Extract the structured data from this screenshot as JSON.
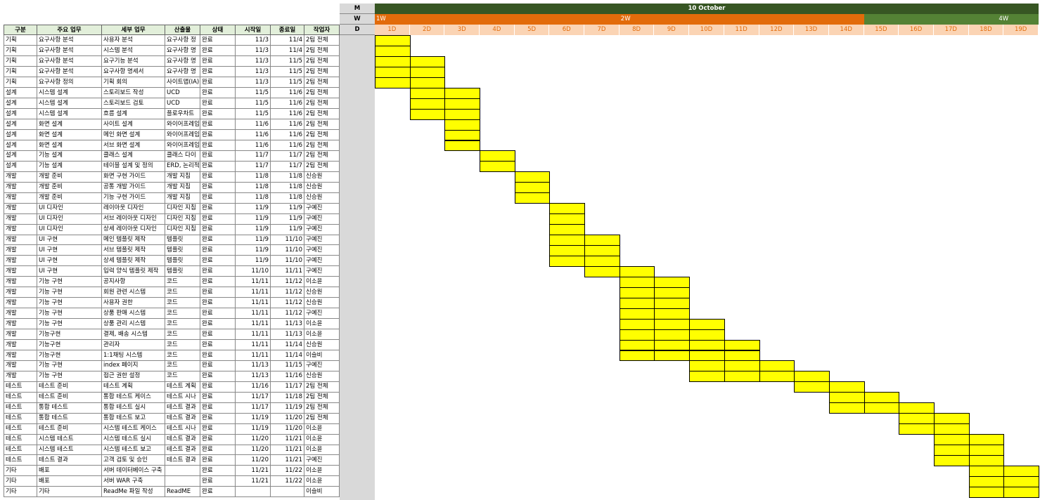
{
  "table": {
    "headers": [
      "구분",
      "주요 업무",
      "세부 업무",
      "산출물",
      "상태",
      "시작일",
      "종료일",
      "작업자"
    ],
    "rows": [
      [
        "기획",
        "요구사항 분석",
        "사용자 분석",
        "요구사항 정",
        "완료",
        "11/3",
        "11/4",
        "2팀 전체"
      ],
      [
        "기획",
        "요구사항 분석",
        "시스템 분석",
        "요구사항 명",
        "완료",
        "11/3",
        "11/4",
        "2팀 전체"
      ],
      [
        "기획",
        "요구사항 분석",
        "요구기능 분석",
        "요구사항 명",
        "완료",
        "11/3",
        "11/5",
        "2팀 전체"
      ],
      [
        "기획",
        "요구사항 분석",
        "요구사항 명세서",
        "요구사항 명",
        "완료",
        "11/3",
        "11/5",
        "2팀 전체"
      ],
      [
        "기획",
        "요구사항 정의",
        "기획 회의",
        "사이트맵(IA)",
        "완료",
        "11/3",
        "11/5",
        "2팀 전체"
      ],
      [
        "설계",
        "시스템 설계",
        "스토리보드 작성",
        "UCD",
        "완료",
        "11/5",
        "11/6",
        "2팀 전체"
      ],
      [
        "설계",
        "시스템 설계",
        "스토리보드 검토",
        "UCD",
        "완료",
        "11/5",
        "11/6",
        "2팀 전체"
      ],
      [
        "설계",
        "시스템 설계",
        "흐름 설계",
        "플로우차트",
        "완료",
        "11/5",
        "11/6",
        "2팀 전체"
      ],
      [
        "설계",
        "화면 설계",
        "사이트 설계",
        "와이어프레임",
        "완료",
        "11/6",
        "11/6",
        "2팀 전체"
      ],
      [
        "설계",
        "화면 설계",
        "메인 화면 설계",
        "와이어프레임",
        "완료",
        "11/6",
        "11/6",
        "2팀 전체"
      ],
      [
        "설계",
        "화면 설계",
        "서브 화면 설계",
        "와이어프레임",
        "완료",
        "11/6",
        "11/6",
        "2팀 전체"
      ],
      [
        "설계",
        "기능 설계",
        "클래스 설계",
        "클래스 다이",
        "완료",
        "11/7",
        "11/7",
        "2팀 전체"
      ],
      [
        "설계",
        "기능 설계",
        "테이블 설계 및 정의",
        "ERD, 논리적",
        "완료",
        "11/7",
        "11/7",
        "2팀 전체"
      ],
      [
        "개발",
        "개발 준비",
        "화면 구현 가이드",
        "개발 지침",
        "완료",
        "11/8",
        "11/8",
        "신승원"
      ],
      [
        "개발",
        "개발 준비",
        "공통 개발 가이드",
        "개발 지침",
        "완료",
        "11/8",
        "11/8",
        "신승원"
      ],
      [
        "개발",
        "개발 준비",
        "기능 구현 가이드",
        "개발 지침",
        "완료",
        "11/8",
        "11/8",
        "신승원"
      ],
      [
        "개발",
        "UI 디자인",
        "레이아웃 디자인",
        "디자인 지침",
        "완료",
        "11/9",
        "11/9",
        "구예진"
      ],
      [
        "개발",
        "UI 디자인",
        "서브 레이아웃 디자인",
        "디자인 지침",
        "완료",
        "11/9",
        "11/9",
        "구예진"
      ],
      [
        "개발",
        "UI 디자인",
        "상세 레이아웃 디자인",
        "디자인 지침",
        "완료",
        "11/9",
        "11/9",
        "구예진"
      ],
      [
        "개발",
        "UI 구현",
        "메인 템플릿 제작",
        "템플릿",
        "완료",
        "11/9",
        "11/10",
        "구예진"
      ],
      [
        "개발",
        "UI 구현",
        "서브 템플릿 제작",
        "템플릿",
        "완료",
        "11/9",
        "11/10",
        "구예진"
      ],
      [
        "개발",
        "UI 구현",
        "상세 템플릿 제작",
        "템플릿",
        "완료",
        "11/9",
        "11/10",
        "구예진"
      ],
      [
        "개발",
        "UI 구현",
        "입력 양식 템플릿 제작",
        "템플릿",
        "완료",
        "11/10",
        "11/11",
        "구예진"
      ],
      [
        "개발",
        "기능 구현",
        "공지사항",
        "코드",
        "완료",
        "11/11",
        "11/12",
        "이소윤"
      ],
      [
        "개발",
        "기능 구현",
        "회원 관련 시스템",
        "코드",
        "완료",
        "11/11",
        "11/12",
        "신승원"
      ],
      [
        "개발",
        "기능 구현",
        "사용자 권한",
        "코드",
        "완료",
        "11/11",
        "11/12",
        "신승원"
      ],
      [
        "개발",
        "기능 구현",
        "상품 판매 시스템",
        "코드",
        "완료",
        "11/11",
        "11/12",
        "구예진"
      ],
      [
        "개발",
        "기능 구현",
        "상품 관리 시스템",
        "코드",
        "완료",
        "11/11",
        "11/13",
        "이소윤"
      ],
      [
        "개발",
        "기능구현",
        "결제, 배송 시스템",
        "코드",
        "완료",
        "11/11",
        "11/13",
        "이소윤"
      ],
      [
        "개발",
        "기능구현",
        "관리자",
        "코드",
        "완료",
        "11/11",
        "11/14",
        "신승원"
      ],
      [
        "개발",
        "기능구현",
        "1:1채팅 시스템",
        "코드",
        "완료",
        "11/11",
        "11/14",
        "이슬비"
      ],
      [
        "개발",
        "기능 구현",
        "index 페이지",
        "코드",
        "완료",
        "11/13",
        "11/15",
        "구예진"
      ],
      [
        "개발",
        "기능 구현",
        "접근 권한 설정",
        "코드",
        "완료",
        "11/13",
        "11/16",
        "신승원"
      ],
      [
        "테스트",
        "테스트 준비",
        "테스트 계획",
        "테스트 계획",
        "완료",
        "11/16",
        "11/17",
        "2팀 전체"
      ],
      [
        "테스트",
        "테스트 준비",
        "통합 테스트 케이스",
        "테스트 시나",
        "완료",
        "11/17",
        "11/18",
        "2팀 전체"
      ],
      [
        "테스트",
        "통합 테스트",
        "통합 테스트 실시",
        "테스트 결과",
        "완료",
        "11/17",
        "11/19",
        "2팀 전체"
      ],
      [
        "테스트",
        "통합 테스트",
        "통합 테스트 보고",
        "테스트 결과",
        "완료",
        "11/19",
        "11/20",
        "2팀 전체"
      ],
      [
        "테스트",
        "테스트 준비",
        "시스템 테스트 케이스",
        "테스트 시나",
        "완료",
        "11/19",
        "11/20",
        "이소윤"
      ],
      [
        "테스트",
        "시스템 테스트",
        "시스템 테스트 실시",
        "테스트 결과",
        "완료",
        "11/20",
        "11/21",
        "이소윤"
      ],
      [
        "테스트",
        "시스템 테스트",
        "시스템 테스트 보고",
        "테스트 결과",
        "완료",
        "11/20",
        "11/21",
        "이소윤"
      ],
      [
        "테스트",
        "테스트 결과",
        "고객 검토 및 승인",
        "테스트 결과",
        "완료",
        "11/20",
        "11/21",
        "구예진"
      ],
      [
        "기타",
        "배포",
        "서버 데이터베이스 구축",
        null,
        "완료",
        "11/21",
        "11/22",
        "이소윤"
      ],
      [
        "기타",
        "배포",
        "서버 WAR 구축",
        null,
        "완료",
        "11/21",
        "11/22",
        "이소윤"
      ],
      [
        "기타",
        "기타",
        "ReadMe 파일 작성",
        "ReadME",
        "완료",
        null,
        null,
        "이슬비"
      ]
    ]
  },
  "gantt": {
    "month_label": "M",
    "week_label": "W",
    "day_label": "D",
    "month": "10 October",
    "month_color": "#375623",
    "weeks": [
      {
        "label": "1W",
        "span": [
          1,
          7
        ],
        "color": "#e26b0a"
      },
      {
        "label": "2W",
        "span": [
          8,
          14
        ],
        "color": "#e26b0a"
      },
      {
        "label": null,
        "span": [
          15,
          17
        ],
        "color": "#548235"
      },
      {
        "label": "4W",
        "span": [
          18,
          19
        ],
        "color": "#548235"
      }
    ],
    "days": [
      "1D",
      "2D",
      "3D",
      "4D",
      "5D",
      "6D",
      "7D",
      "8D",
      "9D",
      "10D",
      "11D",
      "12D",
      "13D",
      "14D",
      "15D",
      "16D",
      "17D",
      "18D",
      "19D"
    ],
    "bar_color": "#ffff00",
    "bars": [
      [
        1,
        1
      ],
      [
        1,
        1
      ],
      [
        1,
        2
      ],
      [
        1,
        2
      ],
      [
        1,
        2
      ],
      [
        2,
        3
      ],
      [
        2,
        3
      ],
      [
        2,
        3
      ],
      [
        3,
        3
      ],
      [
        3,
        3
      ],
      [
        3,
        3
      ],
      [
        4,
        4
      ],
      [
        4,
        4
      ],
      [
        5,
        5
      ],
      [
        5,
        5
      ],
      [
        5,
        5
      ],
      [
        6,
        6
      ],
      [
        6,
        6
      ],
      [
        6,
        6
      ],
      [
        6,
        7
      ],
      [
        6,
        7
      ],
      [
        6,
        7
      ],
      [
        7,
        8
      ],
      [
        8,
        9
      ],
      [
        8,
        9
      ],
      [
        8,
        9
      ],
      [
        8,
        9
      ],
      [
        8,
        10
      ],
      [
        8,
        10
      ],
      [
        8,
        11
      ],
      [
        8,
        11
      ],
      [
        10,
        12
      ],
      [
        10,
        13
      ],
      [
        13,
        14
      ],
      [
        14,
        15
      ],
      [
        14,
        16
      ],
      [
        16,
        17
      ],
      [
        16,
        17
      ],
      [
        17,
        18
      ],
      [
        17,
        18
      ],
      [
        17,
        18
      ],
      [
        18,
        19
      ],
      [
        18,
        19
      ],
      [
        18,
        19
      ]
    ]
  }
}
